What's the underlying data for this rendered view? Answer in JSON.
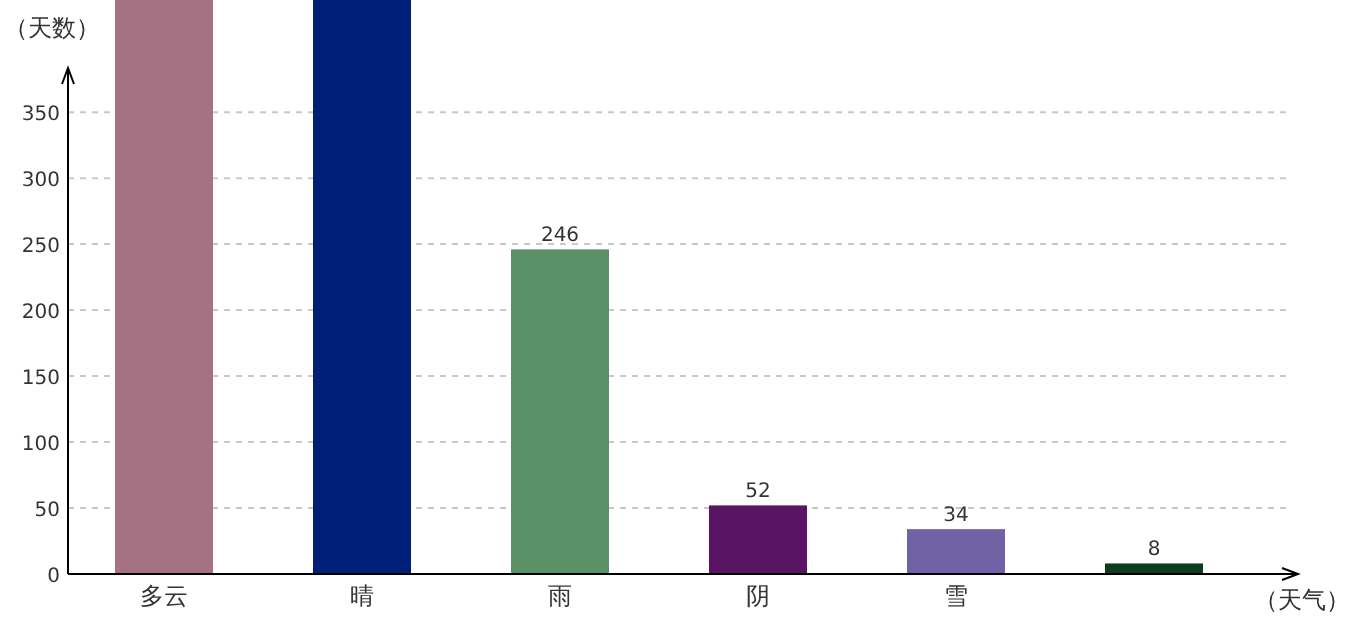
{
  "chart_data": {
    "type": "bar",
    "categories": [
      "多云",
      "晴",
      "雨",
      "阴",
      "雪",
      null
    ],
    "values": [
      435,
      435,
      246,
      52,
      34,
      8
    ],
    "value_labels": [
      null,
      null,
      "246",
      "52",
      "34",
      "8"
    ],
    "colors": [
      "#a47282",
      "#001f78",
      "#5a9168",
      "#5a1464",
      "#7062a4",
      "#0e3d1e"
    ],
    "ylim": [
      0,
      435
    ],
    "yticks": [
      0,
      50,
      100,
      150,
      200,
      250,
      300,
      350
    ],
    "grid": "y",
    "xlabel": "（天气）",
    "ylabel": "（天数）"
  }
}
